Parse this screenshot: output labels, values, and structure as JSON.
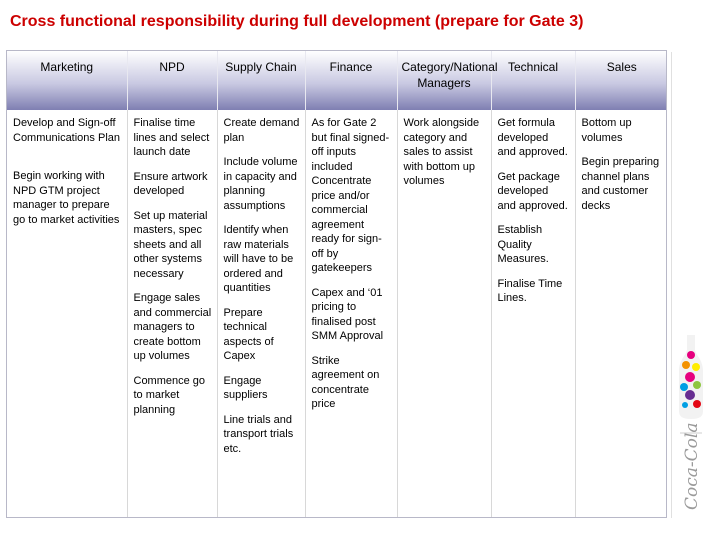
{
  "title": "Cross functional responsibility during full development (prepare for Gate 3)",
  "headers": [
    "Marketing",
    "NPD",
    "Supply Chain",
    "Finance",
    "Category/National Managers",
    "Technical",
    "Sales"
  ],
  "columns": {
    "marketing": [
      "Develop and Sign-off Communications Plan",
      "Begin working with NPD GTM project manager to prepare go to market activities"
    ],
    "npd": [
      "Finalise time lines and select launch date",
      "Ensure artwork developed",
      "Set up material masters, spec sheets and all other systems necessary",
      "Engage sales and commercial managers to create bottom up volumes",
      "Commence go to market planning"
    ],
    "supply_chain": [
      "Create demand plan",
      "Include volume in capacity and planning assumptions",
      "Identify when raw materials will have to be ordered and quantities",
      "Prepare technical aspects of Capex",
      "Engage suppliers",
      "Line trials and transport trials etc."
    ],
    "finance": [
      "As for Gate 2 but final signed-off inputs included Concentrate price and/or commercial agreement ready for sign-off by gatekeepers",
      "Capex and ‘01 pricing to finalised post SMM Approval",
      "Strike agreement on concentrate price"
    ],
    "category": [
      "Work alongside category and sales to assist with bottom up volumes"
    ],
    "technical": [
      "Get formula developed and approved.",
      "Get package developed and approved.",
      "Establish Quality Measures.",
      "Finalise Time Lines."
    ],
    "sales": [
      "Bottom up volumes",
      "Begin preparing channel plans and customer decks"
    ]
  },
  "logo": {
    "brand_text": "Coca-Cola",
    "colors": [
      "#e6007e",
      "#f39200",
      "#ffed00",
      "#009fe3",
      "#8dc63f",
      "#662d91"
    ]
  }
}
